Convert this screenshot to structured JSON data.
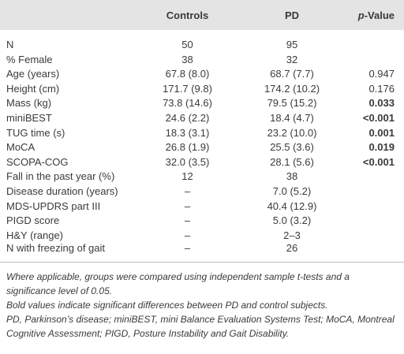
{
  "table": {
    "header": [
      "",
      "Controls",
      "PD",
      {
        "italic": "p",
        "text": "-Value"
      }
    ],
    "rows": [
      [
        "N",
        "50",
        "95",
        ""
      ],
      [
        "% Female",
        "38",
        "32",
        ""
      ],
      [
        "Age (years)",
        "67.8 (8.0)",
        "68.7 (7.7)",
        "0.947"
      ],
      [
        "Height (cm)",
        "171.7 (9.8)",
        "174.2 (10.2)",
        "0.176"
      ],
      [
        "Mass (kg)",
        "73.8 (14.6)",
        "79.5 (15.2)",
        "0.033"
      ],
      [
        "miniBEST",
        "24.6 (2.2)",
        "18.4 (4.7)",
        "<0.001"
      ],
      [
        "TUG time (s)",
        "18.3 (3.1)",
        "23.2 (10.0)",
        "0.001"
      ],
      [
        "MoCA",
        "26.8 (1.9)",
        "25.5 (3.6)",
        "0.019"
      ],
      [
        "SCOPA-COG",
        "32.0 (3.5)",
        "28.1 (5.6)",
        "<0.001"
      ],
      [
        "Fall in the past year (%)",
        "12",
        "38",
        ""
      ],
      [
        "Disease duration (years)",
        "–",
        "7.0 (5.2)",
        ""
      ],
      [
        "MDS-UPDRS part III",
        "–",
        "40.4 (12.9)",
        ""
      ],
      [
        "PIGD score",
        "–",
        "5.0 (3.2)",
        ""
      ],
      [
        "H&Y (range)",
        "–",
        "2–3",
        ""
      ],
      [
        "N with freezing of gait",
        "–",
        "26",
        ""
      ]
    ],
    "footnotes": [
      "Where applicable, groups were compared using independent sample t-tests and a significance level of 0.05.",
      "Bold values indicate significant differences between PD and control subjects.",
      "PD, Parkinson’s disease; miniBEST, mini Balance Evaluation Systems Test; MoCA, Montreal Cognitive Assessment; PIGD, Posture Instability and Gait Disability."
    ]
  }
}
